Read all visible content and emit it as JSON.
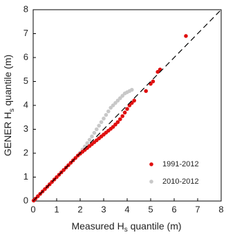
{
  "chart_data": {
    "type": "scatter",
    "xlabel": {
      "main": "Measured H",
      "sub": "s",
      "rest": " quantile (m)"
    },
    "ylabel": {
      "main": "GENER H",
      "sub": "s",
      "rest": " quantile (m)"
    },
    "xlim": [
      0,
      8
    ],
    "ylim": [
      0,
      8
    ],
    "xticks": [
      0,
      1,
      2,
      3,
      4,
      5,
      6,
      7,
      8
    ],
    "yticks": [
      0,
      1,
      2,
      3,
      4,
      5,
      6,
      7,
      8
    ],
    "reference_line": true,
    "legend_position": "lower right",
    "series": [
      {
        "name": "2010-2012",
        "color": "#c8c8c8",
        "x": [
          1.9,
          2.0,
          2.1,
          2.2,
          2.3,
          2.4,
          2.5,
          2.6,
          2.7,
          2.8,
          2.9,
          3.0,
          3.1,
          3.2,
          3.3,
          3.4,
          3.5,
          3.6,
          3.7,
          3.8,
          3.9,
          4.0,
          4.1,
          4.2
        ],
        "values": [
          1.9,
          2.02,
          2.15,
          2.28,
          2.42,
          2.56,
          2.7,
          2.85,
          3.0,
          3.15,
          3.3,
          3.45,
          3.6,
          3.75,
          3.9,
          4.0,
          4.1,
          4.2,
          4.3,
          4.4,
          4.5,
          4.55,
          4.6,
          4.65
        ]
      },
      {
        "name": "1991-2012",
        "color": "#e01010",
        "x": [
          0.02,
          0.1,
          0.2,
          0.3,
          0.4,
          0.5,
          0.6,
          0.7,
          0.8,
          0.9,
          1.0,
          1.1,
          1.2,
          1.3,
          1.4,
          1.5,
          1.6,
          1.7,
          1.8,
          1.9,
          2.0,
          2.1,
          2.2,
          2.3,
          2.4,
          2.5,
          2.6,
          2.7,
          2.8,
          2.9,
          3.0,
          3.1,
          3.2,
          3.3,
          3.4,
          3.5,
          3.6,
          3.7,
          3.8,
          3.9,
          4.0,
          4.1,
          4.2,
          4.3,
          4.8,
          5.0,
          5.1,
          5.3,
          5.4,
          6.5
        ],
        "values": [
          0.02,
          0.1,
          0.2,
          0.3,
          0.4,
          0.5,
          0.6,
          0.7,
          0.8,
          0.9,
          1.0,
          1.1,
          1.2,
          1.3,
          1.4,
          1.5,
          1.6,
          1.7,
          1.8,
          1.9,
          1.98,
          2.06,
          2.14,
          2.22,
          2.3,
          2.38,
          2.46,
          2.54,
          2.62,
          2.7,
          2.78,
          2.86,
          2.94,
          3.02,
          3.1,
          3.2,
          3.3,
          3.42,
          3.55,
          3.7,
          3.85,
          4.0,
          4.1,
          4.2,
          4.6,
          4.9,
          5.0,
          5.4,
          5.5,
          6.9
        ]
      }
    ]
  }
}
